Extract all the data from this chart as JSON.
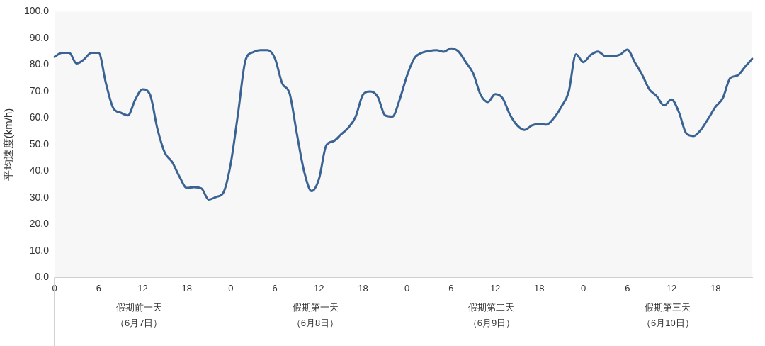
{
  "chart_data": {
    "type": "line",
    "ylabel": "平均速度(km/h)",
    "categories": [
      "0",
      null,
      null,
      null,
      null,
      null,
      "6",
      null,
      null,
      null,
      null,
      null,
      "12",
      null,
      null,
      null,
      null,
      null,
      "18",
      null,
      null,
      null,
      null,
      null,
      "0",
      null,
      null,
      null,
      null,
      null,
      "6",
      null,
      null,
      null,
      null,
      null,
      "12",
      null,
      null,
      null,
      null,
      null,
      "18",
      null,
      null,
      null,
      null,
      null,
      "0",
      null,
      null,
      null,
      null,
      null,
      "6",
      null,
      null,
      null,
      null,
      null,
      "12",
      null,
      null,
      null,
      null,
      null,
      "18",
      null,
      null,
      null,
      null,
      null,
      "0",
      null,
      null,
      null,
      null,
      null,
      "6",
      null,
      null,
      null,
      null,
      null,
      "12",
      null,
      null,
      null,
      null,
      null,
      "18",
      null,
      null,
      null,
      null,
      null
    ],
    "series": [
      {
        "color": "#3a6293",
        "values": [
          83,
          84.5,
          84.5,
          80.5,
          82,
          84.5,
          84.5,
          73,
          63.7,
          62,
          61,
          67,
          70.8,
          68.8,
          56,
          47,
          43.5,
          38,
          33.7,
          34,
          33.5,
          29.3,
          30.3,
          32,
          43,
          62,
          81.7,
          84.7,
          85.5,
          85.5,
          82.5,
          73,
          69.3,
          54,
          39.7,
          32.5,
          37,
          49.7,
          51.3,
          53.8,
          56.3,
          60.5,
          68.8,
          70,
          68,
          61,
          60.5,
          67,
          76,
          82.5,
          84.5,
          85.2,
          85.5,
          84.9,
          86.2,
          85,
          81,
          76.8,
          68.8,
          66,
          69,
          67.5,
          61.3,
          57.2,
          55.5,
          57.2,
          57.8,
          57.5,
          60,
          64.2,
          69.7,
          84,
          81,
          83.7,
          85,
          83.3,
          83.3,
          83.8,
          85.7,
          81,
          76.3,
          70.7,
          68.2,
          64.7,
          67,
          62.3,
          54.3,
          53.2,
          55.5,
          59.7,
          64.2,
          67.5,
          75,
          76,
          79.2,
          82.3
        ]
      }
    ],
    "ylim": [
      0,
      100
    ],
    "yticks": [
      {
        "value": 0,
        "label": "0.0"
      },
      {
        "value": 10,
        "label": "10.0"
      },
      {
        "value": 20,
        "label": "20.0"
      },
      {
        "value": 30,
        "label": "30.0"
      },
      {
        "value": 40,
        "label": "40.0"
      },
      {
        "value": 50,
        "label": "50.0"
      },
      {
        "value": 60,
        "label": "60.0"
      },
      {
        "value": 70,
        "label": "70.0"
      },
      {
        "value": 80,
        "label": "80.0"
      },
      {
        "value": 90,
        "label": "90.0"
      },
      {
        "value": 100,
        "label": "100.0"
      }
    ],
    "annotations": [
      "假期前一天",
      "（6月7日）",
      "假期第一天",
      "（6月8日）",
      "假期第二天",
      "（6月9日）",
      "假期第三天",
      "（6月10日）"
    ],
    "grid": false,
    "legend": false,
    "marker": "none",
    "line_style": "solid"
  }
}
